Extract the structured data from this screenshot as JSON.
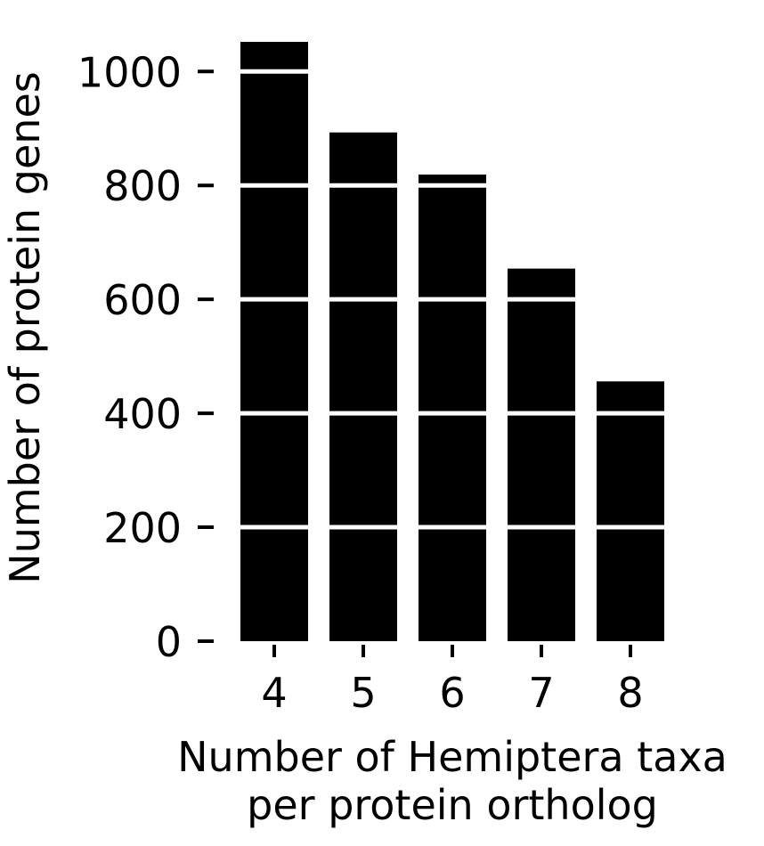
{
  "chart_data": {
    "type": "bar",
    "categories": [
      "4",
      "5",
      "6",
      "7",
      "8"
    ],
    "values": [
      1052,
      893,
      819,
      654,
      456
    ],
    "title": "",
    "xlabel": [
      "Number of Hemiptera taxa",
      "per protein ortholog"
    ],
    "ylabel": "Number of protein genes",
    "ylim": [
      0,
      1052
    ],
    "yticks": [
      0,
      200,
      400,
      600,
      800,
      1000
    ],
    "grid": "horizontal white lines over bars",
    "bar_color": "#000000",
    "grid_color": "#ffffff"
  }
}
